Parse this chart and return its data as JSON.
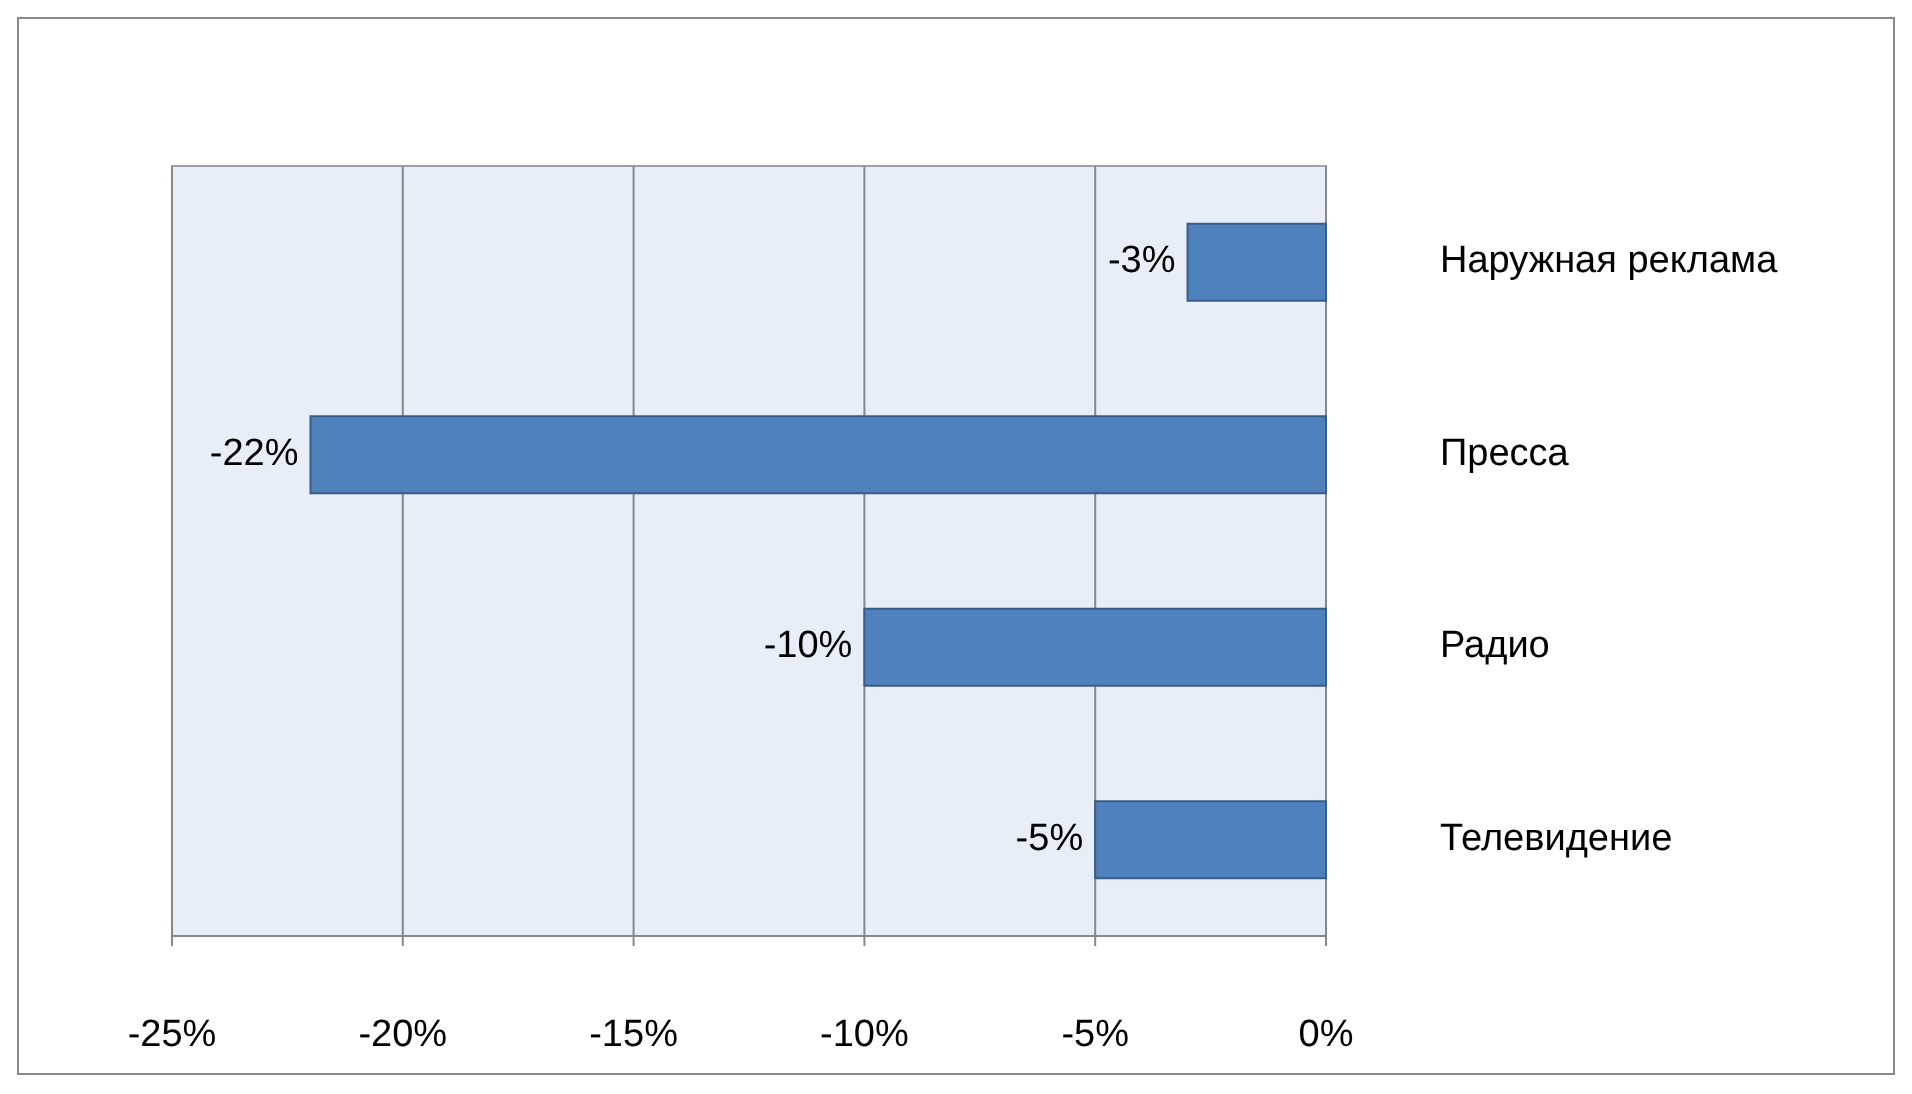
{
  "chart_data": {
    "type": "bar",
    "orientation": "horizontal",
    "categories": [
      "Наружная реклама",
      "Пресса",
      "Радио",
      "Телевидение"
    ],
    "values": [
      -3,
      -22,
      -10,
      -5
    ],
    "value_labels": [
      "-3%",
      "-22%",
      "-10%",
      "-5%"
    ],
    "color": "#4f81bd",
    "xlim": [
      -25,
      0
    ],
    "xticks": [
      {
        "value": -25,
        "label": "-25%"
      },
      {
        "value": -20,
        "label": "-20%"
      },
      {
        "value": -15,
        "label": "-15%"
      },
      {
        "value": -10,
        "label": "-10%"
      },
      {
        "value": -5,
        "label": "-5%"
      },
      {
        "value": 0,
        "label": "0%"
      }
    ],
    "grid": "x"
  }
}
